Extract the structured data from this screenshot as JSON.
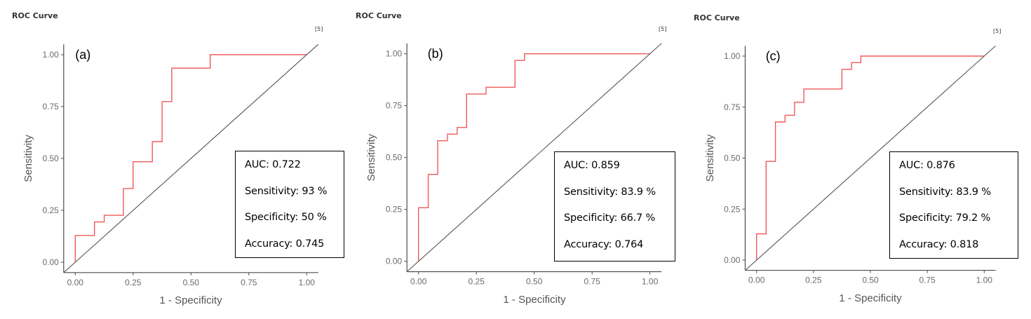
{
  "chart_data": [
    {
      "type": "line",
      "panel_tag": "(a)",
      "title": "ROC Curve",
      "reference": "[5]",
      "xlabel": "1 - Specificity",
      "ylabel": "Sensitivity",
      "xlim": [
        -0.05,
        1.05
      ],
      "ylim": [
        -0.05,
        1.05
      ],
      "xticks": [
        "0.00",
        "0.25",
        "0.50",
        "0.75",
        "1.00"
      ],
      "yticks": [
        "0.00",
        "0.25",
        "0.50",
        "0.75",
        "1.00"
      ],
      "grid": false,
      "series": [
        {
          "name": "ROC",
          "color": "#F05A5A",
          "step": true,
          "x": [
            0.0,
            0.0,
            0.083,
            0.083,
            0.125,
            0.125,
            0.208,
            0.208,
            0.25,
            0.25,
            0.333,
            0.333,
            0.375,
            0.375,
            0.417,
            0.417,
            0.583,
            0.583,
            1.0
          ],
          "y": [
            0.0,
            0.129,
            0.129,
            0.194,
            0.194,
            0.226,
            0.226,
            0.355,
            0.355,
            0.484,
            0.484,
            0.581,
            0.581,
            0.774,
            0.774,
            0.935,
            0.935,
            1.0,
            1.0
          ]
        },
        {
          "name": "chance",
          "color": "#555555",
          "x": [
            -0.05,
            1.05
          ],
          "y": [
            -0.05,
            1.05
          ]
        }
      ],
      "annotation": {
        "lines": [
          "AUC: 0.722",
          "Sensitivity: 93 %",
          "Specificity: 50 %",
          "Accuracy: 0.745"
        ],
        "auc": 0.722,
        "sensitivity_pct": 93,
        "specificity_pct": 50,
        "accuracy": 0.745,
        "placement": "bottom-right"
      }
    },
    {
      "type": "line",
      "panel_tag": "(b)",
      "title": "ROC Curve",
      "reference": "[5]",
      "xlabel": "1 - Specificity",
      "ylabel": "Sensitivity",
      "xlim": [
        -0.05,
        1.05
      ],
      "ylim": [
        -0.05,
        1.05
      ],
      "xticks": [
        "0.00",
        "0.25",
        "0.50",
        "0.75",
        "1.00"
      ],
      "yticks": [
        "0.00",
        "0.25",
        "0.50",
        "0.75",
        "1.00"
      ],
      "grid": false,
      "series": [
        {
          "name": "ROC",
          "color": "#F05A5A",
          "step": true,
          "x": [
            0.0,
            0.0,
            0.042,
            0.042,
            0.083,
            0.083,
            0.125,
            0.125,
            0.167,
            0.167,
            0.208,
            0.208,
            0.292,
            0.292,
            0.417,
            0.417,
            0.458,
            0.458,
            1.0
          ],
          "y": [
            0.0,
            0.258,
            0.258,
            0.419,
            0.419,
            0.581,
            0.581,
            0.613,
            0.613,
            0.645,
            0.645,
            0.806,
            0.806,
            0.839,
            0.839,
            0.968,
            0.968,
            1.0,
            1.0
          ]
        },
        {
          "name": "chance",
          "color": "#555555",
          "x": [
            -0.05,
            1.05
          ],
          "y": [
            -0.05,
            1.05
          ]
        }
      ],
      "annotation": {
        "lines": [
          "AUC: 0.859",
          "Sensitivity: 83.9 %",
          "Specificity: 66.7 %",
          "Accuracy: 0.764"
        ],
        "auc": 0.859,
        "sensitivity_pct": 83.9,
        "specificity_pct": 66.7,
        "accuracy": 0.764,
        "placement": "bottom-right"
      }
    },
    {
      "type": "line",
      "panel_tag": "(c)",
      "title": "ROC Curve",
      "reference": "[5]",
      "xlabel": "1 - Specificity",
      "ylabel": "Sensitivity",
      "xlim": [
        -0.05,
        1.05
      ],
      "ylim": [
        -0.05,
        1.05
      ],
      "xticks": [
        "0.00",
        "0.25",
        "0.50",
        "0.75",
        "1.00"
      ],
      "yticks": [
        "0.00",
        "0.25",
        "0.50",
        "0.75",
        "1.00"
      ],
      "grid": false,
      "series": [
        {
          "name": "ROC",
          "color": "#F05A5A",
          "step": true,
          "x": [
            0.0,
            0.0,
            0.042,
            0.042,
            0.083,
            0.083,
            0.125,
            0.125,
            0.167,
            0.167,
            0.208,
            0.208,
            0.375,
            0.375,
            0.417,
            0.417,
            0.458,
            0.458,
            1.0
          ],
          "y": [
            0.0,
            0.129,
            0.129,
            0.484,
            0.484,
            0.677,
            0.677,
            0.71,
            0.71,
            0.774,
            0.774,
            0.839,
            0.839,
            0.935,
            0.935,
            0.968,
            0.968,
            1.0,
            1.0
          ]
        },
        {
          "name": "chance",
          "color": "#555555",
          "x": [
            -0.05,
            1.05
          ],
          "y": [
            -0.05,
            1.05
          ]
        }
      ],
      "annotation": {
        "lines": [
          "AUC: 0.876",
          "Sensitivity: 83.9 %",
          "Specificity: 79.2 %",
          "Accuracy: 0.818"
        ],
        "auc": 0.876,
        "sensitivity_pct": 83.9,
        "specificity_pct": 79.2,
        "accuracy": 0.818,
        "placement": "bottom-right"
      }
    }
  ]
}
